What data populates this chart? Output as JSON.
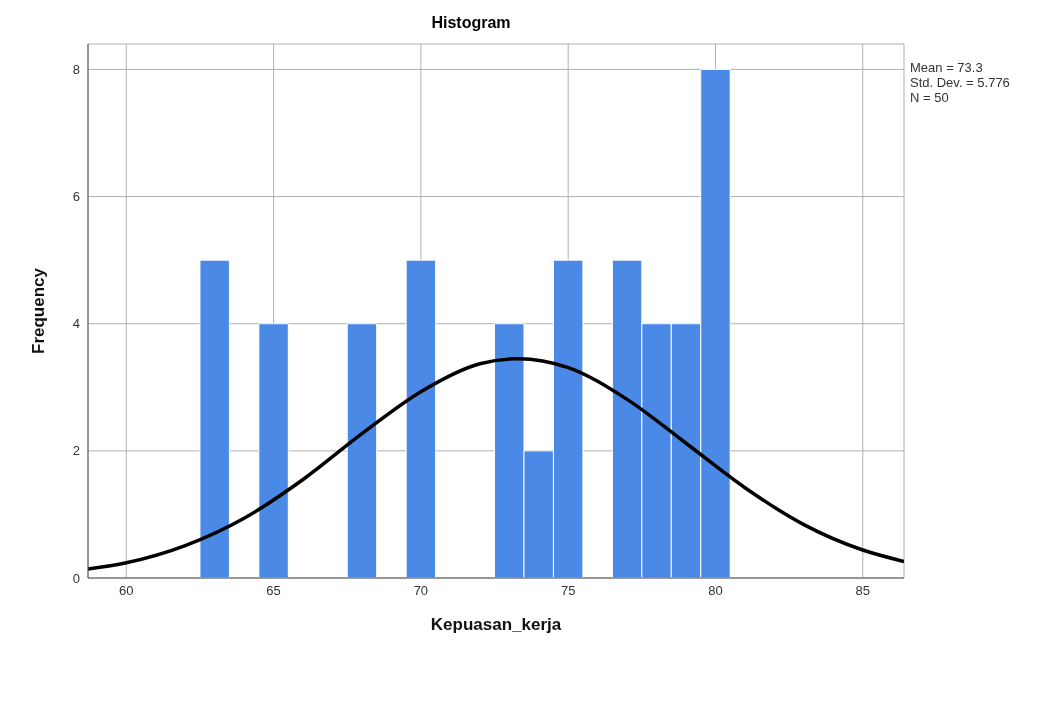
{
  "chart_data": {
    "type": "histogram",
    "title": "Histogram",
    "xlabel": "Kepuasan_kerja",
    "ylabel": "Frequency",
    "series": [
      {
        "color": "#4a8ae6",
        "bins": [
          62.5,
          63.5,
          64.5,
          65.5,
          66.5,
          67.5,
          68.5,
          69.5,
          70.5,
          71.5,
          72.5,
          73.5,
          74.5,
          75.5,
          76.5,
          77.5,
          78.5,
          79.5,
          80.5
        ],
        "values": [
          5,
          0,
          4,
          0,
          0,
          4,
          0,
          5,
          0,
          0,
          4,
          2,
          5,
          0,
          5,
          4,
          4,
          8
        ]
      },
      {
        "type": "line",
        "color": "#000000",
        "x": [
          58.7,
          60,
          62,
          64,
          66,
          68,
          70,
          72,
          73.3,
          75,
          77,
          79,
          81,
          83,
          85,
          86.4
        ],
        "values": [
          0.14,
          0.24,
          0.51,
          0.94,
          1.55,
          2.27,
          2.93,
          3.37,
          3.45,
          3.31,
          2.81,
          2.12,
          1.42,
          0.84,
          0.44,
          0.26
        ]
      }
    ],
    "xlim": [
      58.7,
      86.4
    ],
    "xticks": [
      60,
      65,
      70,
      75,
      80,
      85
    ],
    "ylim": [
      0,
      8.4
    ],
    "yticks": [
      0,
      2,
      4,
      6,
      8
    ],
    "grid": true,
    "annotations": [
      "Mean = 73.3",
      "Std. Dev. = 5.776",
      "N = 50"
    ]
  }
}
